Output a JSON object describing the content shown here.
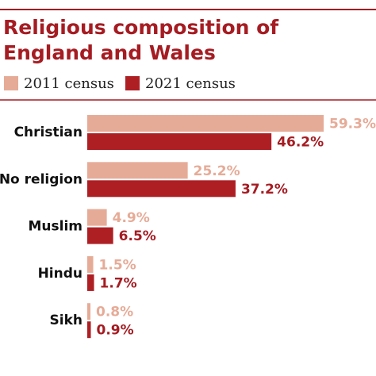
{
  "chart_data": {
    "type": "bar",
    "orientation": "horizontal",
    "title_lines": [
      "Religious composition of",
      "England and Wales"
    ],
    "categories": [
      "Christian",
      "No religion",
      "Muslim",
      "Hindu",
      "Sikh"
    ],
    "series": [
      {
        "name": "2011 census",
        "color": "#e6ab97",
        "label_color": "#e6ab97",
        "values": [
          59.3,
          25.2,
          4.9,
          1.5,
          0.8
        ],
        "value_labels": [
          "59.3%",
          "25.2%",
          "4.9%",
          "1.5%",
          "0.8%"
        ]
      },
      {
        "name": "2021 census",
        "color": "#ae1f24",
        "label_color": "#a51c22",
        "values": [
          46.2,
          37.2,
          6.5,
          1.7,
          0.9
        ],
        "value_labels": [
          "46.2%",
          "37.2%",
          "6.5%",
          "1.7%",
          "0.9%"
        ]
      }
    ]
  }
}
